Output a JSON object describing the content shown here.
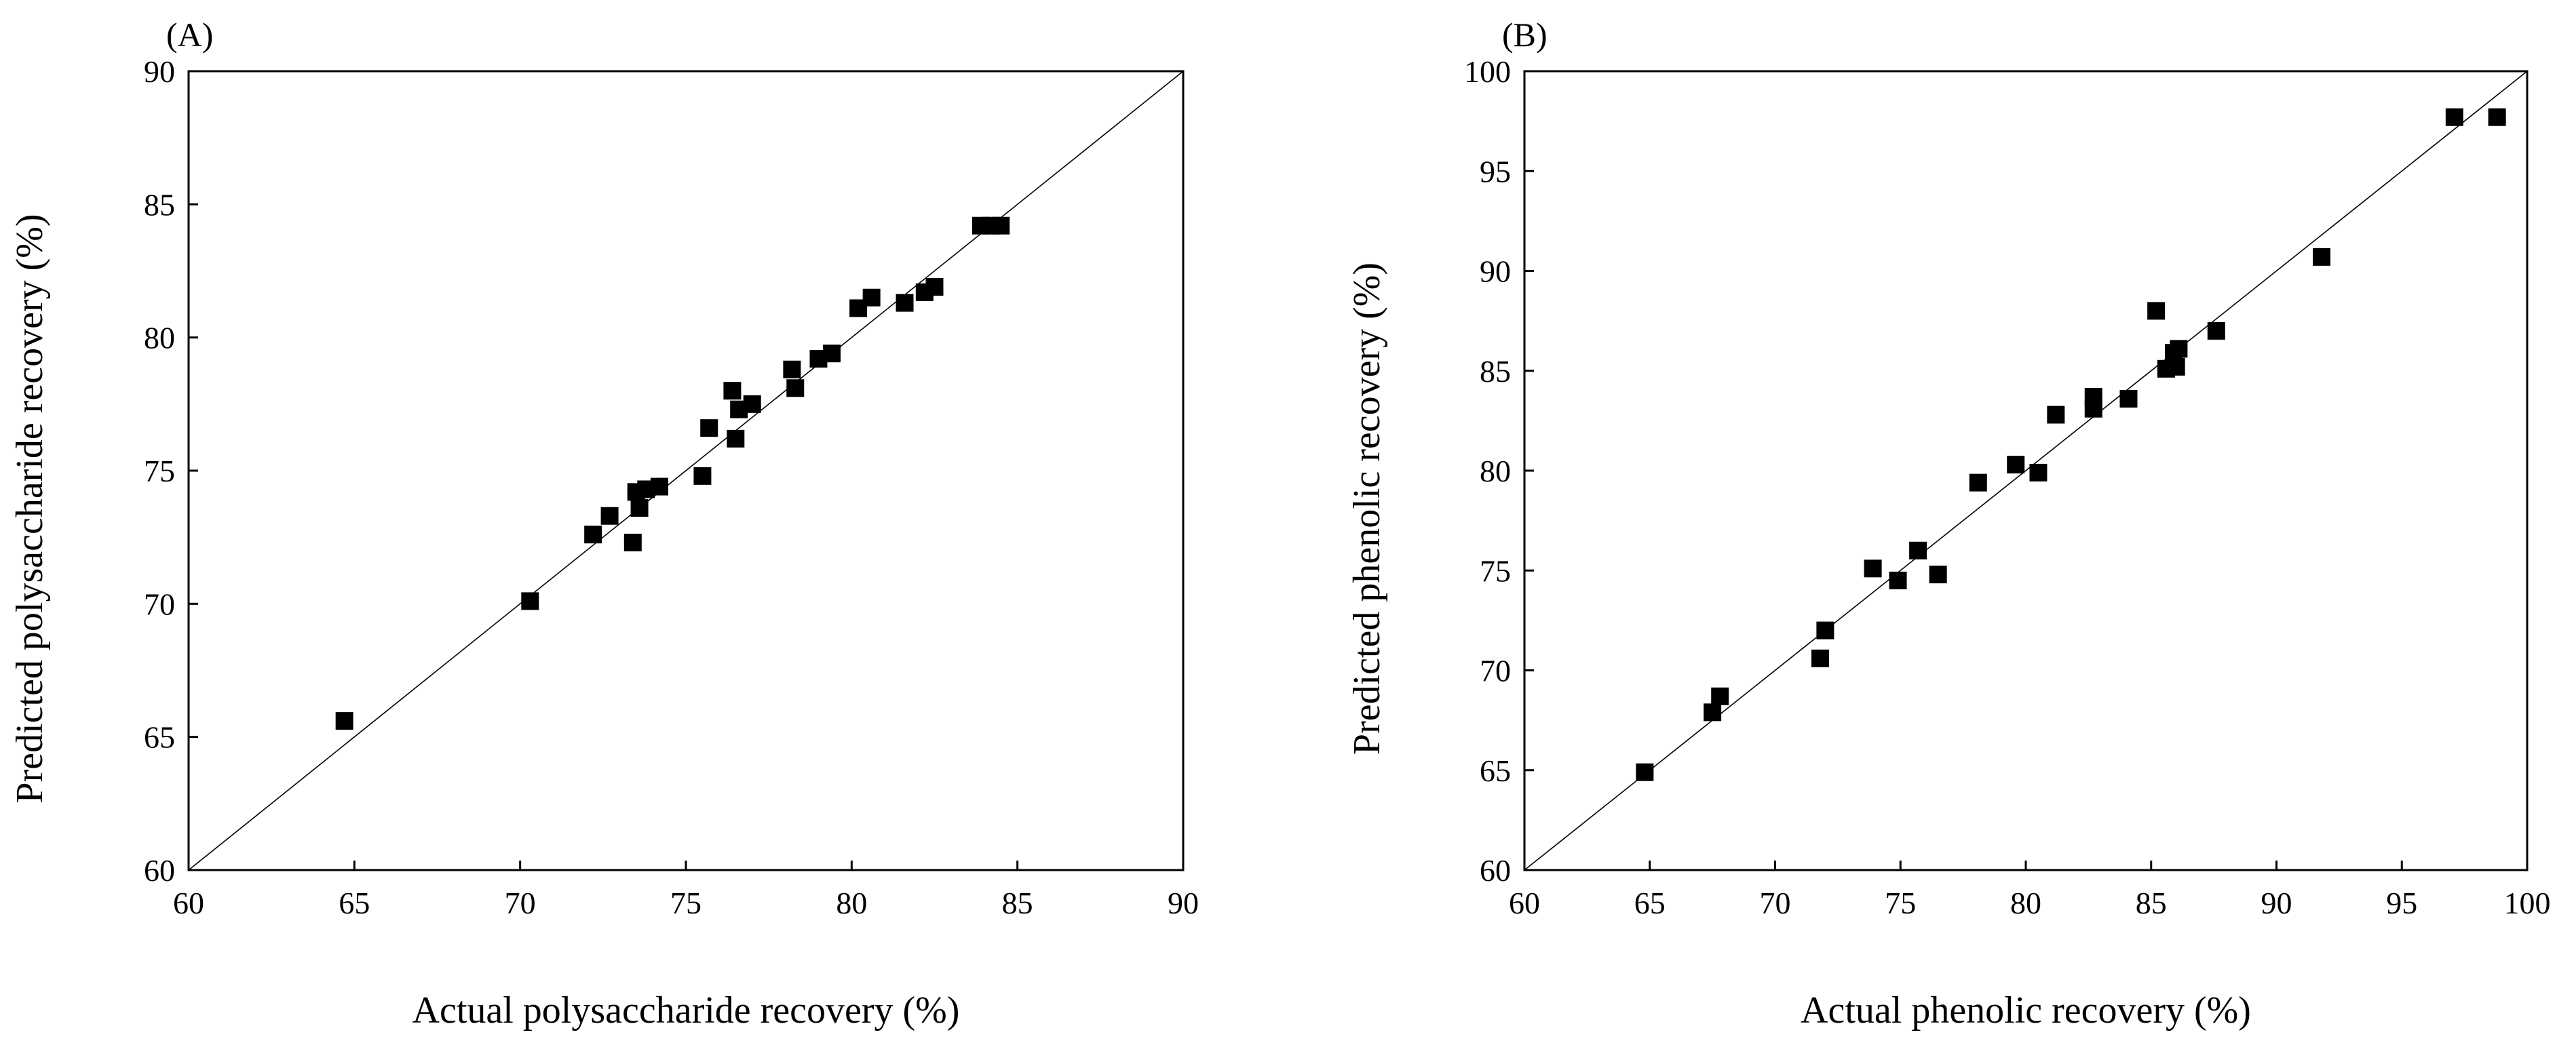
{
  "chart_data": [
    {
      "type": "scatter",
      "panel_label": "(A)",
      "title": "",
      "xlabel": "Actual polysaccharide recovery (%)",
      "ylabel": "Predicted polysaccharide recovery (%)",
      "xlim": [
        60,
        90
      ],
      "ylim": [
        60,
        90
      ],
      "xticks": [
        "60",
        "65",
        "70",
        "75",
        "80",
        "85",
        "90"
      ],
      "yticks": [
        "60",
        "65",
        "70",
        "75",
        "80",
        "85",
        "90"
      ],
      "grid": false,
      "reference_line": "y = x",
      "series": [
        {
          "name": "polysaccharide recovery",
          "x": [
            64.7,
            70.3,
            72.2,
            72.7,
            73.4,
            73.5,
            73.6,
            73.8,
            74.2,
            75.5,
            75.7,
            76.4,
            76.5,
            76.6,
            77.0,
            78.2,
            78.3,
            79.0,
            79.4,
            80.2,
            80.6,
            81.6,
            82.2,
            82.5,
            83.9,
            84.2,
            84.5
          ],
          "y": [
            65.6,
            70.1,
            72.6,
            73.3,
            72.3,
            74.2,
            73.6,
            74.3,
            74.4,
            74.8,
            76.6,
            78.0,
            76.2,
            77.3,
            77.5,
            78.8,
            78.1,
            79.2,
            79.4,
            81.1,
            81.5,
            81.3,
            81.7,
            81.9,
            84.2,
            84.2,
            84.2
          ]
        }
      ]
    },
    {
      "type": "scatter",
      "panel_label": "(B)",
      "title": "",
      "xlabel": "Actual phenolic recovery (%)",
      "ylabel": "Predicted phenolic recovery (%)",
      "xlim": [
        60,
        100
      ],
      "ylim": [
        60,
        100
      ],
      "xticks": [
        "60",
        "65",
        "70",
        "75",
        "80",
        "85",
        "90",
        "95",
        "100"
      ],
      "yticks": [
        "60",
        "65",
        "70",
        "75",
        "80",
        "85",
        "90",
        "95",
        "100"
      ],
      "grid": false,
      "reference_line": "y = x",
      "series": [
        {
          "name": "phenolic recovery",
          "x": [
            64.8,
            67.5,
            67.8,
            71.8,
            72.0,
            73.9,
            74.9,
            75.7,
            76.5,
            78.1,
            79.6,
            80.5,
            81.2,
            82.7,
            82.7,
            84.1,
            85.2,
            85.6,
            85.9,
            86.0,
            86.1,
            87.6,
            91.8,
            97.1,
            98.8
          ],
          "y": [
            64.9,
            67.9,
            68.7,
            70.6,
            72.0,
            75.1,
            74.5,
            76.0,
            74.8,
            79.4,
            80.3,
            79.9,
            82.8,
            83.7,
            83.1,
            83.6,
            88.0,
            85.1,
            85.9,
            85.2,
            86.1,
            87.0,
            90.7,
            97.7,
            97.7
          ]
        }
      ]
    }
  ]
}
